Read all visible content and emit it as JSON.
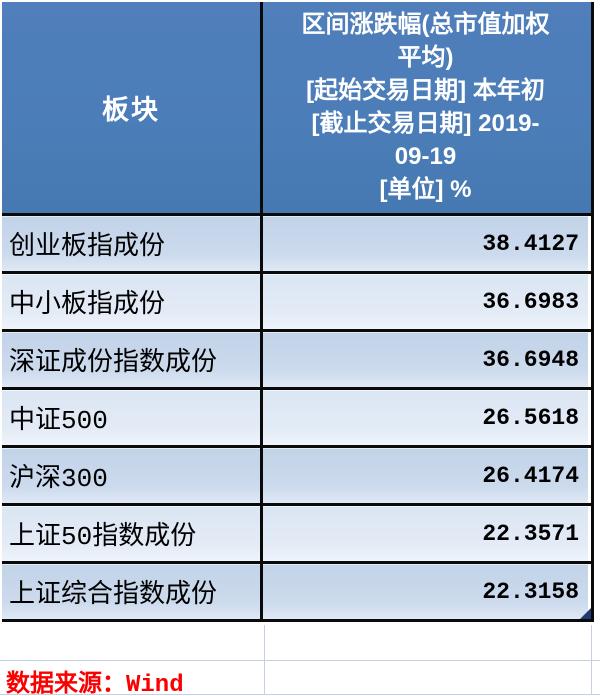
{
  "colors": {
    "header_bg": "#4b7db8",
    "header_text": "#ffffff",
    "row_dark": "#c6d5e9",
    "row_light": "#dde8f4",
    "border": "#0a0a0a",
    "gridline": "#c6d0e0",
    "source_red": "#fb0000",
    "fill_handle": "#1e3c6d"
  },
  "table": {
    "header": {
      "col1": "板块",
      "col2_lines": [
        "区间涨跌幅(总市值加权",
        "平均)",
        "[起始交易日期] 本年初",
        "[截止交易日期] 2019-",
        "09-19",
        "[单位] %"
      ]
    },
    "rows": [
      {
        "label": "创业板指成份",
        "value": "38.4127"
      },
      {
        "label": "中小板指成份",
        "value": "36.6983"
      },
      {
        "label": "深证成份指数成份",
        "value": "36.6948"
      },
      {
        "label": "中证500",
        "value": "26.5618"
      },
      {
        "label": "沪深300",
        "value": "26.4174"
      },
      {
        "label": "上证50指数成份",
        "value": "22.3571"
      },
      {
        "label": "上证综合指数成份",
        "value": "22.3158"
      }
    ]
  },
  "footer": {
    "source": "数据来源：Wind"
  },
  "chart_data": {
    "type": "table",
    "title": "区间涨跌幅(总市值加权平均)",
    "column_headers": [
      "板块",
      "区间涨跌幅(总市值加权平均) [起始交易日期] 本年初 [截止交易日期] 2019-09-19 [单位] %"
    ],
    "categories": [
      "创业板指成份",
      "中小板指成份",
      "深证成份指数成份",
      "中证500",
      "沪深300",
      "上证50指数成份",
      "上证综合指数成份"
    ],
    "values": [
      38.4127,
      36.6983,
      36.6948,
      26.5618,
      26.4174,
      22.3571,
      22.3158
    ],
    "unit": "%",
    "start_date": "本年初",
    "end_date": "2019-09-19",
    "source": "数据来源：Wind"
  }
}
